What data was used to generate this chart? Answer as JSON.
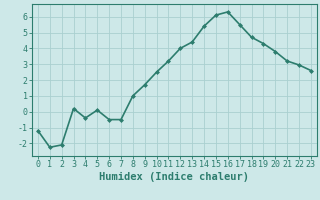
{
  "x": [
    0,
    1,
    2,
    3,
    4,
    5,
    6,
    7,
    8,
    9,
    10,
    11,
    12,
    13,
    14,
    15,
    16,
    17,
    18,
    19,
    20,
    21,
    22,
    23
  ],
  "y": [
    -1.2,
    -2.25,
    -2.1,
    0.2,
    -0.4,
    0.1,
    -0.5,
    -0.5,
    1.0,
    1.7,
    2.5,
    3.2,
    4.0,
    4.4,
    5.4,
    6.1,
    6.3,
    5.5,
    4.7,
    4.3,
    3.8,
    3.2,
    2.95,
    2.6
  ],
  "line_color": "#2d7d6e",
  "marker": "D",
  "marker_size": 2.0,
  "bg_color": "#cde8e8",
  "grid_color": "#aad0d0",
  "xlabel": "Humidex (Indice chaleur)",
  "xlim": [
    -0.5,
    23.5
  ],
  "ylim": [
    -2.8,
    6.8
  ],
  "yticks": [
    -2,
    -1,
    0,
    1,
    2,
    3,
    4,
    5,
    6
  ],
  "xticks": [
    0,
    1,
    2,
    3,
    4,
    5,
    6,
    7,
    8,
    9,
    10,
    11,
    12,
    13,
    14,
    15,
    16,
    17,
    18,
    19,
    20,
    21,
    22,
    23
  ],
  "tick_color": "#2d7d6e",
  "label_color": "#2d7d6e",
  "font_size": 6.0,
  "xlabel_fontsize": 7.5,
  "linewidth": 1.2
}
